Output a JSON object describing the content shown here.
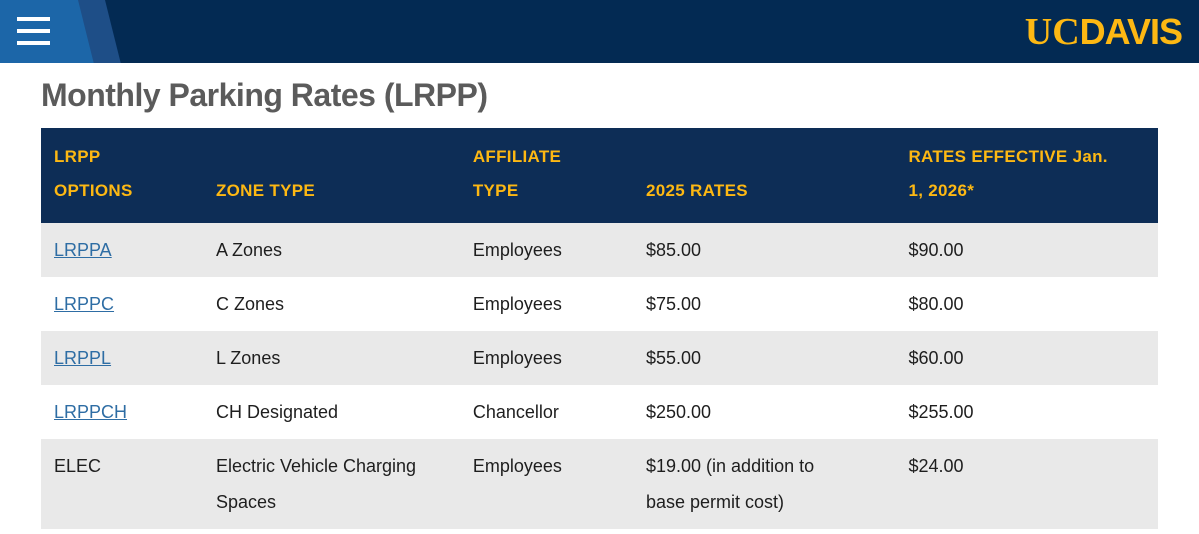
{
  "header": {
    "menu_icon": "hamburger-icon",
    "logo": {
      "uc": "UC",
      "davis": "DAVIS"
    }
  },
  "page": {
    "title": "Monthly Parking Rates (LRPP)"
  },
  "colors": {
    "navy": "#032a53",
    "table_header_navy": "#0d2d56",
    "gold": "#fdb813",
    "light_blue": "#1c66a8",
    "mid_blue": "#1e4e87",
    "link_blue": "#2e6da4",
    "row_gray": "#e9e9e9",
    "title_gray": "#5b5b5b"
  },
  "table": {
    "headers": [
      {
        "label": "LRPP OPTIONS",
        "lines": [
          "LRPP",
          "OPTIONS"
        ]
      },
      {
        "label": "ZONE TYPE",
        "lines": [
          "ZONE TYPE"
        ]
      },
      {
        "label": "AFFILIATE TYPE",
        "lines": [
          "AFFILIATE",
          "TYPE"
        ]
      },
      {
        "label": "2025 RATES",
        "lines": [
          "2025 RATES"
        ]
      },
      {
        "label": "RATES EFFECTIVE Jan. 1, 2026*",
        "lines": [
          "RATES EFFECTIVE Jan.",
          "1, 2026*"
        ]
      }
    ],
    "rows": [
      {
        "option": "LRPPA",
        "zone": "A Zones",
        "affiliate": "Employees",
        "rate_2025": "$85.00",
        "rate_2026": "$90.00"
      },
      {
        "option": "LRPPC",
        "zone": "C Zones",
        "affiliate": "Employees",
        "rate_2025": "$75.00",
        "rate_2026": "$80.00"
      },
      {
        "option": "LRPPL",
        "zone": "L Zones",
        "affiliate": "Employees",
        "rate_2025": "$55.00",
        "rate_2026": "$60.00"
      },
      {
        "option": "LRPPCH",
        "zone": "CH Designated",
        "affiliate": "Chancellor",
        "rate_2025": "$250.00",
        "rate_2026": "$255.00"
      },
      {
        "option": "ELEC",
        "zone": "Electric Vehicle Charging Spaces",
        "affiliate": "Employees",
        "rate_2025": "$19.00 (in addition to base permit cost)",
        "rate_2026": "$24.00"
      }
    ]
  }
}
